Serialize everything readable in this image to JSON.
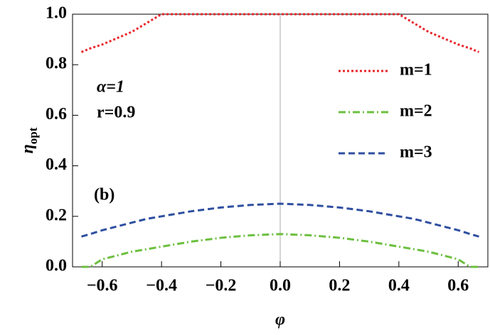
{
  "chart_data": {
    "type": "line",
    "xlabel": "φ",
    "ylabel": "η",
    "ylabel_sub": "opt",
    "annotations": [
      "α=1",
      "r=0.9",
      "(b)"
    ],
    "x": [
      -0.67,
      -0.64,
      -0.6,
      -0.5,
      -0.45,
      -0.4,
      -0.3,
      -0.2,
      -0.1,
      0,
      0.1,
      0.2,
      0.3,
      0.4,
      0.45,
      0.5,
      0.6,
      0.64,
      0.67
    ],
    "series": [
      {
        "name": "m=1",
        "color": "#e8262b",
        "dash": "3,3",
        "values": [
          0.85,
          0.865,
          0.88,
          0.93,
          0.965,
          1,
          1,
          1,
          1,
          1,
          1,
          1,
          1,
          1,
          0.965,
          0.93,
          0.88,
          0.865,
          0.85
        ]
      },
      {
        "name": "m=2",
        "color": "#6cbf3f",
        "dash": "10,4,2,4",
        "values": [
          0,
          0,
          0.03,
          0.06,
          0.07,
          0.08,
          0.1,
          0.115,
          0.125,
          0.13,
          0.125,
          0.115,
          0.1,
          0.08,
          0.07,
          0.06,
          0.03,
          0,
          0
        ]
      },
      {
        "name": "m=3",
        "color": "#2f4fa0",
        "dash": "9,5",
        "values": [
          0.12,
          0.13,
          0.145,
          0.175,
          0.19,
          0.2,
          0.22,
          0.235,
          0.245,
          0.25,
          0.245,
          0.235,
          0.22,
          0.2,
          0.19,
          0.175,
          0.145,
          0.13,
          0.12
        ]
      }
    ],
    "xlim": [
      -0.7,
      0.7
    ],
    "ylim": [
      0,
      1
    ],
    "xticks": [
      {
        "value": -0.6,
        "label": "−0.6"
      },
      {
        "value": -0.4,
        "label": "−0.4"
      },
      {
        "value": -0.2,
        "label": "−0.2"
      },
      {
        "value": 0,
        "label": "0.0"
      },
      {
        "value": 0.2,
        "label": "0.2"
      },
      {
        "value": 0.4,
        "label": "0.4"
      },
      {
        "value": 0.6,
        "label": "0.6"
      }
    ],
    "yticks": [
      {
        "value": 0,
        "label": "0.0"
      },
      {
        "value": 0.2,
        "label": "0.2"
      },
      {
        "value": 0.4,
        "label": "0.4"
      },
      {
        "value": 0.6,
        "label": "0.6"
      },
      {
        "value": 0.8,
        "label": "0.8"
      },
      {
        "value": 1,
        "label": "1.0"
      }
    ],
    "legend": "upper right"
  }
}
